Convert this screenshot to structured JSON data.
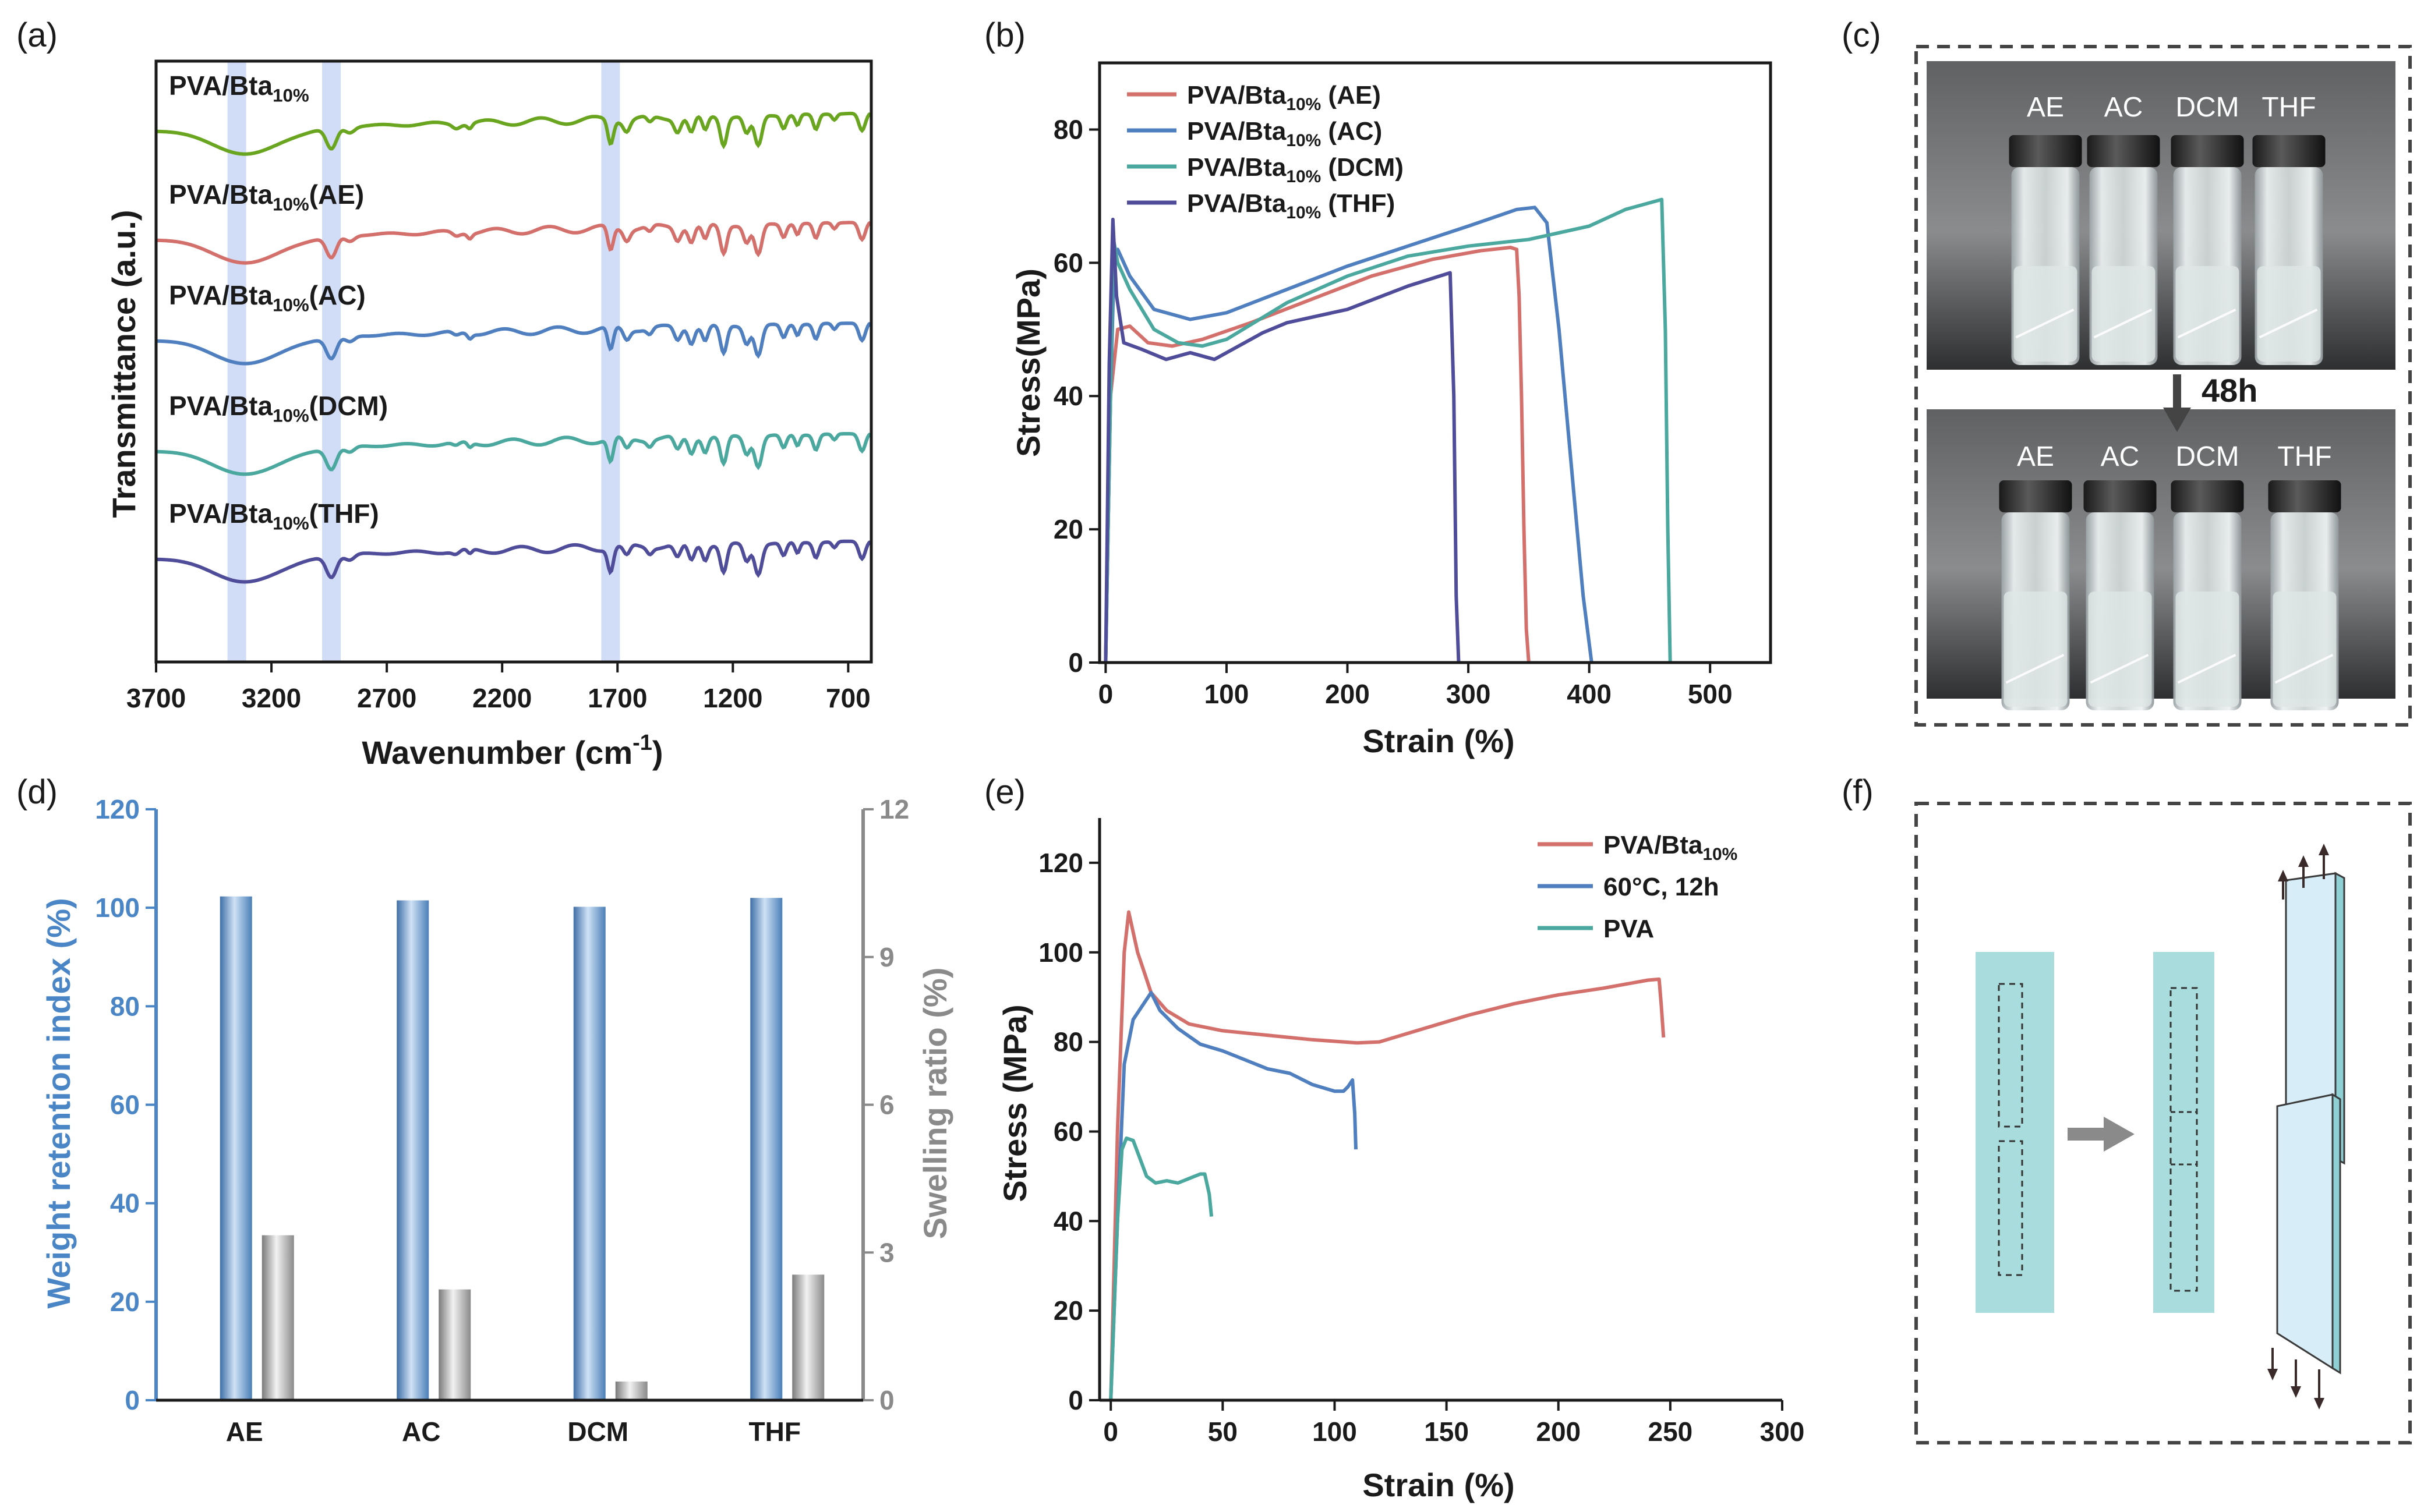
{
  "panels": {
    "a": {
      "label": "(a)"
    },
    "b": {
      "label": "(b)"
    },
    "c": {
      "label": "(c)",
      "top_labels": [
        "AE",
        "AC",
        "DCM",
        "THF"
      ],
      "bottom_labels": [
        "AE",
        "AC",
        "DCM",
        "THF"
      ],
      "arrow_text": "48h"
    },
    "d": {
      "label": "(d)"
    },
    "e": {
      "label": "(e)"
    },
    "f": {
      "label": "(f)"
    }
  },
  "colors": {
    "green": "#6aa51f",
    "red": "#d4706c",
    "blue": "#4f7fbf",
    "teal": "#4aa89f",
    "purple": "#4f4c9a",
    "band": "#c9d6f5",
    "bar_blue": "#5b8fc6",
    "bar_gray": "#9a9a9a",
    "axis_blue": "#4a86c5",
    "axis_gray": "#8a8a8a",
    "strip": "#a9dcdc",
    "film": "#d7eef8"
  },
  "chart_data": [
    {
      "panel": "a",
      "type": "line",
      "xlabel_main": "Wavenumber (cm",
      "xlabel_sup": "-1",
      "xlabel_end": ")",
      "ylabel": "Transmittance (a.u.)",
      "xlim": [
        3700,
        600
      ],
      "xticks": [
        "3700",
        "3200",
        "2700",
        "2200",
        "1700",
        "1200",
        "700"
      ],
      "bands": [
        3350,
        2940,
        1730
      ],
      "series": [
        {
          "name": "PVA/Bta",
          "sub": "10%",
          "suffix": "",
          "color": "green"
        },
        {
          "name": "PVA/Bta",
          "sub": "10%",
          "suffix": "(AE)",
          "color": "red"
        },
        {
          "name": "PVA/Bta",
          "sub": "10%",
          "suffix": "(AC)",
          "color": "blue"
        },
        {
          "name": "PVA/Bta",
          "sub": "10%",
          "suffix": "(DCM)",
          "color": "teal"
        },
        {
          "name": "PVA/Bta",
          "sub": "10%",
          "suffix": "(THF)",
          "color": "purple"
        }
      ]
    },
    {
      "panel": "b",
      "type": "line",
      "xlabel": "Strain (%)",
      "ylabel": "Stress(MPa)",
      "xlim": [
        -5,
        550
      ],
      "ylim": [
        0,
        90
      ],
      "xticks": [
        "0",
        "100",
        "200",
        "300",
        "400",
        "500"
      ],
      "yticks": [
        "0",
        "20",
        "40",
        "60",
        "80"
      ],
      "series": [
        {
          "name": "PVA/Bta",
          "sub": "10%",
          "suffix": " (AE)",
          "color": "red",
          "x": [
            0,
            4,
            10,
            20,
            35,
            55,
            80,
            120,
            170,
            220,
            270,
            310,
            335,
            340,
            342,
            344,
            346,
            348,
            350
          ],
          "y": [
            0,
            40,
            50,
            50.5,
            48,
            47.5,
            48.5,
            51,
            54.5,
            58,
            60.5,
            61.8,
            62.3,
            62,
            55,
            40,
            20,
            5,
            0
          ]
        },
        {
          "name": "PVA/Bta",
          "sub": "10%",
          "suffix": " (AC)",
          "color": "blue",
          "x": [
            0,
            4,
            7,
            10,
            20,
            40,
            70,
            100,
            150,
            200,
            250,
            300,
            340,
            355,
            365,
            375,
            385,
            395,
            402
          ],
          "y": [
            0,
            40,
            60,
            62,
            58,
            53,
            51.5,
            52.5,
            56,
            59.5,
            62.5,
            65.5,
            68,
            68.3,
            66,
            50,
            30,
            10,
            0
          ]
        },
        {
          "name": "PVA/Bta",
          "sub": "10%",
          "suffix": " (DCM)",
          "color": "teal",
          "x": [
            0,
            4,
            6,
            10,
            20,
            40,
            60,
            80,
            100,
            150,
            200,
            250,
            300,
            350,
            400,
            430,
            460,
            463,
            465,
            467
          ],
          "y": [
            0,
            40,
            64,
            60,
            56,
            50,
            48,
            47.5,
            48.5,
            54,
            58,
            61,
            62.5,
            63.5,
            65.5,
            68,
            69.5,
            50,
            20,
            0
          ]
        },
        {
          "name": "PVA/Bta",
          "sub": "10%",
          "suffix": " (THF)",
          "color": "purple",
          "x": [
            0,
            3,
            6,
            9,
            15,
            30,
            50,
            70,
            90,
            110,
            130,
            150,
            200,
            250,
            285,
            288,
            290,
            292
          ],
          "y": [
            0,
            45,
            66.5,
            55,
            48,
            47,
            45.5,
            46.5,
            45.5,
            47.5,
            49.5,
            51,
            53,
            56.5,
            58.5,
            40,
            10,
            0
          ]
        }
      ]
    },
    {
      "panel": "d",
      "type": "bar",
      "categories": [
        "AE",
        "AC",
        "DCM",
        "THF"
      ],
      "ylabel_left": "Weight retention index (%)",
      "ylabel_right": "Swelling ratio (%)",
      "ylim_left": [
        0,
        120
      ],
      "ylim_right": [
        0,
        12
      ],
      "yticks_left": [
        "0",
        "20",
        "40",
        "60",
        "80",
        "100",
        "120"
      ],
      "yticks_right": [
        "0",
        "3",
        "6",
        "9",
        "12"
      ],
      "series": [
        {
          "name": "Weight retention index",
          "axis": "left",
          "values": [
            102.3,
            101.5,
            100.2,
            102.0
          ]
        },
        {
          "name": "Swelling ratio",
          "axis": "right",
          "values": [
            3.35,
            2.25,
            0.38,
            2.55
          ]
        }
      ]
    },
    {
      "panel": "e",
      "type": "line",
      "xlabel": "Strain (%)",
      "ylabel": "Stress (MPa)",
      "xlim": [
        -5,
        300
      ],
      "ylim": [
        0,
        130
      ],
      "xticks": [
        "0",
        "50",
        "100",
        "150",
        "200",
        "250",
        "300"
      ],
      "yticks": [
        "0",
        "20",
        "40",
        "60",
        "80",
        "100",
        "120"
      ],
      "series": [
        {
          "name": "PVA/Bta",
          "sub": "10%",
          "suffix": "",
          "color": "red",
          "x": [
            0,
            3,
            6,
            8,
            12,
            18,
            25,
            35,
            50,
            70,
            90,
            110,
            120,
            140,
            160,
            180,
            200,
            220,
            240,
            245,
            246,
            247
          ],
          "y": [
            0,
            60,
            100,
            109,
            100,
            91,
            87,
            84,
            82.5,
            81.5,
            80.5,
            79.8,
            80,
            83,
            86,
            88.5,
            90.5,
            92,
            93.8,
            94,
            88,
            81
          ]
        },
        {
          "name": "60°C, 12h",
          "sub": "",
          "suffix": "",
          "color": "blue",
          "x": [
            0,
            3,
            6,
            10,
            14,
            18,
            22,
            30,
            40,
            50,
            60,
            70,
            80,
            90,
            100,
            104,
            106,
            108,
            109,
            109.5
          ],
          "y": [
            0,
            40,
            75,
            85,
            88,
            91,
            87,
            83,
            79.5,
            78,
            76,
            74,
            73,
            70.5,
            69,
            69,
            70,
            71.5,
            64,
            56
          ]
        },
        {
          "name": "PVA",
          "sub": "",
          "suffix": "",
          "color": "teal",
          "x": [
            0,
            3,
            5,
            7,
            10,
            13,
            16,
            20,
            25,
            30,
            35,
            40,
            42,
            44,
            45
          ],
          "y": [
            0,
            40,
            56,
            58.5,
            58,
            54,
            50,
            48.5,
            49,
            48.5,
            49.5,
            50.5,
            50.5,
            46,
            41
          ]
        }
      ]
    }
  ]
}
